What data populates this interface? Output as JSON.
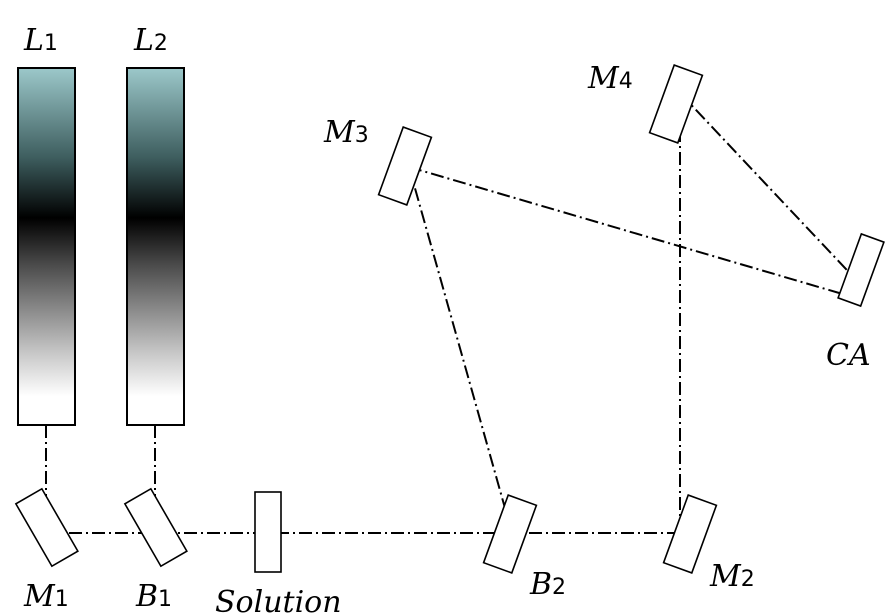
{
  "labels": {
    "l1": {
      "main": "L",
      "sub": "1"
    },
    "l2": {
      "main": "L",
      "sub": "2"
    },
    "m1": {
      "main": "M",
      "sub": "1"
    },
    "m2": {
      "main": "M",
      "sub": "2"
    },
    "m3": {
      "main": "M",
      "sub": "3"
    },
    "m4": {
      "main": "M",
      "sub": "4"
    },
    "b1": {
      "main": "B",
      "sub": "1"
    },
    "b2": {
      "main": "B",
      "sub": "2"
    },
    "solution": "Solution",
    "ca": "CA"
  },
  "colors": {
    "tube_top": "#9cc8ca",
    "tube_mid": "#000000",
    "tube_bottom": "#ffffff",
    "line": "#000000"
  }
}
